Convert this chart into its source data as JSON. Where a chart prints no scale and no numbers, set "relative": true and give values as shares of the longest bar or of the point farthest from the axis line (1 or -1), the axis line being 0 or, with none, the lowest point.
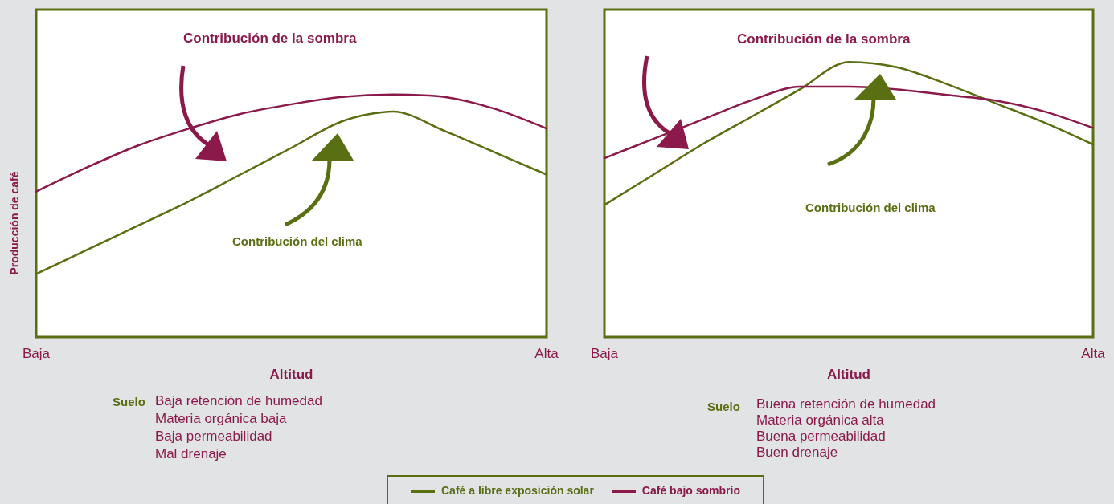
{
  "chart_data": [
    {
      "type": "line",
      "relative": true,
      "xlabel": "Altitud",
      "ylabel": "Producción de café",
      "categories": [
        "Baja",
        null,
        null,
        null,
        null,
        null,
        null,
        null,
        null,
        null,
        "Alta"
      ],
      "series": [
        {
          "name": "Café a libre exposición solar",
          "color": "#5a6e12",
          "values": [
            0.26,
            0.36,
            0.46,
            0.56,
            0.67,
            0.78,
            0.89,
            0.93,
            0.85,
            0.76,
            0.67
          ]
        },
        {
          "name": "Café bajo sombrío",
          "color": "#8b1a4a",
          "values": [
            0.6,
            0.7,
            0.79,
            0.86,
            0.92,
            0.96,
            0.99,
            1.0,
            0.99,
            0.94,
            0.86
          ]
        }
      ],
      "annotations": [
        "Contribución de la sombra",
        "Contribución del clima",
        "Suelo",
        "Baja retención de humedad",
        "Materia orgánica baja",
        "Baja permeabilidad",
        "Mal drenaje"
      ],
      "legend": "bottom",
      "marker": "none",
      "grid": false
    },
    {
      "type": "line",
      "relative": true,
      "xlabel": "Altitud",
      "categories": [
        "Baja",
        null,
        null,
        null,
        null,
        null,
        null,
        null,
        null,
        null,
        "Alta"
      ],
      "series": [
        {
          "color": "#5a6e12",
          "values": [
            0.48,
            0.59,
            0.7,
            0.8,
            0.9,
            1.0,
            0.98,
            0.92,
            0.85,
            0.78,
            0.7
          ]
        },
        {
          "color": "#8b1a4a",
          "values": [
            0.65,
            0.72,
            0.79,
            0.86,
            0.91,
            0.91,
            0.9,
            0.88,
            0.86,
            0.82,
            0.76
          ]
        }
      ],
      "annotations": [
        "Contribución de la sombra",
        "Contribución del clima",
        "Suelo",
        "Buena retención de humedad",
        "Materia orgánica alta",
        "Buena permeabilidad",
        "Buen drenaje"
      ],
      "marker": "none",
      "grid": false
    }
  ]
}
